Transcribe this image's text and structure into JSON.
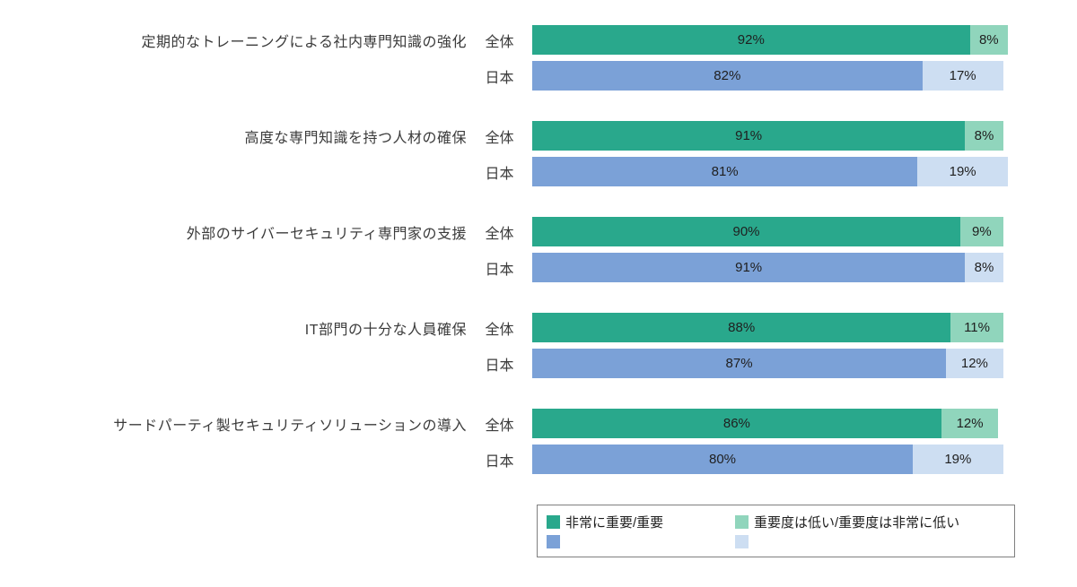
{
  "chart_data": {
    "type": "bar",
    "orientation": "horizontal",
    "stacked": true,
    "xlim": [
      0,
      100
    ],
    "grid": false,
    "legend_position": "bottom",
    "groups": [
      {
        "category": "定期的なトレーニングによる社内専門知識の強化",
        "rows": [
          {
            "name": "全体",
            "values": [
              92,
              8
            ]
          },
          {
            "name": "日本",
            "values": [
              82,
              17
            ]
          }
        ]
      },
      {
        "category": "高度な専門知識を持つ人材の確保",
        "rows": [
          {
            "name": "全体",
            "values": [
              91,
              8
            ]
          },
          {
            "name": "日本",
            "values": [
              81,
              19
            ]
          }
        ]
      },
      {
        "category": "外部のサイバーセキュリティ専門家の支援",
        "rows": [
          {
            "name": "全体",
            "values": [
              90,
              9
            ]
          },
          {
            "name": "日本",
            "values": [
              91,
              8
            ]
          }
        ]
      },
      {
        "category": "IT部門の十分な人員確保",
        "rows": [
          {
            "name": "全体",
            "values": [
              88,
              11
            ]
          },
          {
            "name": "日本",
            "values": [
              87,
              12
            ]
          }
        ]
      },
      {
        "category": "サードパーティ製セキュリティソリューションの導入",
        "rows": [
          {
            "name": "全体",
            "values": [
              86,
              12
            ]
          },
          {
            "name": "日本",
            "values": [
              80,
              19
            ]
          }
        ]
      }
    ],
    "legend": {
      "items": [
        {
          "label": "非常に重要/重要"
        },
        {
          "label": "重要度は低い/重要度は非常に低い"
        }
      ]
    }
  },
  "colors": {
    "全体": [
      "#29a88c",
      "#90d5bc"
    ],
    "日本": [
      "#7ba1d7",
      "#cddef2"
    ]
  }
}
